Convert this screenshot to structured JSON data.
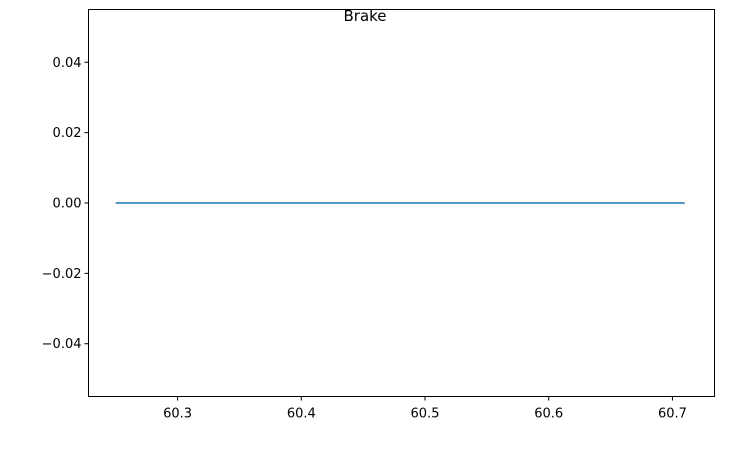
{
  "chart_data": {
    "type": "line",
    "title": "Brake",
    "xlabel": "",
    "ylabel": "",
    "xlim": [
      60.228,
      60.734
    ],
    "ylim": [
      -0.055,
      0.055
    ],
    "x_ticks": [
      60.3,
      60.4,
      60.5,
      60.6,
      60.7
    ],
    "x_tick_labels": [
      "60.3",
      "60.4",
      "60.5",
      "60.6",
      "60.7"
    ],
    "y_ticks": [
      0.04,
      0.02,
      0.0,
      -0.02,
      -0.04
    ],
    "y_tick_labels": [
      "0.04",
      "0.02",
      "0.00",
      "−0.02",
      "−0.04"
    ],
    "grid": false,
    "series": [
      {
        "color": "#1f77b4",
        "x": [
          60.25,
          60.71
        ],
        "y": [
          0.0,
          0.0
        ]
      }
    ]
  }
}
